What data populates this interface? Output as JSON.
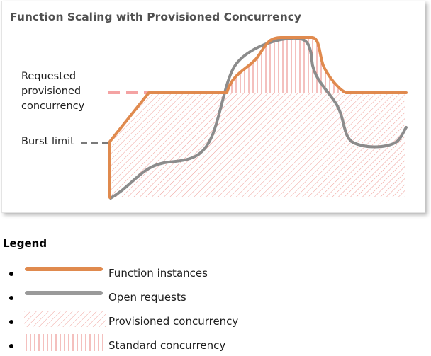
{
  "diagram": {
    "title": "Function Scaling with Provisioned Concurrency",
    "labels": {
      "requested": "Requested provisioned concurrency",
      "burst": "Burst limit"
    }
  },
  "legend": {
    "title": "Legend",
    "items": [
      {
        "label": "Function instances",
        "swatch": "line",
        "color": "#e08a4e"
      },
      {
        "label": "Open requests",
        "swatch": "line",
        "color": "#9a9a9a"
      },
      {
        "label": "Provisioned concurrency",
        "swatch": "diagonal-hatch",
        "color": "#ee9e98"
      },
      {
        "label": "Standard concurrency",
        "swatch": "vertical-hatch",
        "color": "#e9827c"
      }
    ]
  },
  "colors": {
    "function_instances": "#e08a4e",
    "open_requests": "#8c8c8c",
    "requested_line": "#f4a3a3",
    "burst_line": "#7a7a7a",
    "hatch": "#ef9d97"
  }
}
